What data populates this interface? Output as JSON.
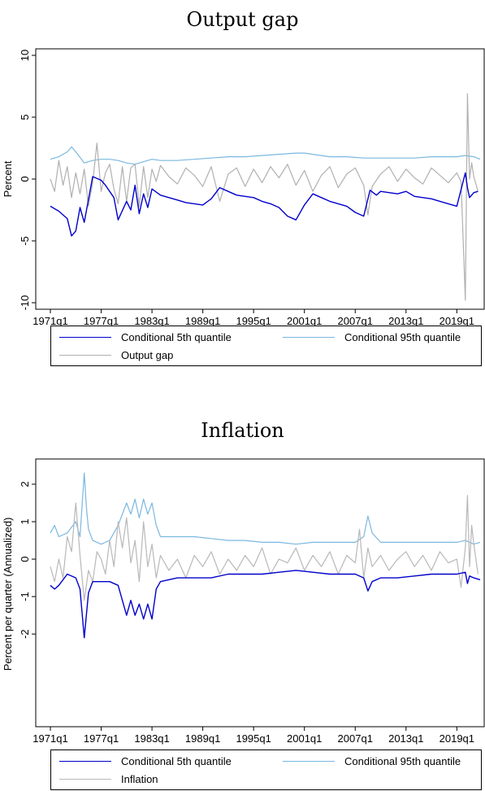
{
  "chart_data": [
    {
      "type": "line",
      "title": "Output gap",
      "ylabel": "Percent",
      "xlabel": "",
      "ylim": [
        -10,
        10
      ],
      "yticks": [
        10,
        5,
        0,
        -5,
        -10
      ],
      "ytick_labels": [
        "10",
        "5",
        "0",
        "-5",
        "-10"
      ],
      "xticks": [
        "1971q1",
        "1977q1",
        "1983q1",
        "1989q1",
        "1995q1",
        "2001q1",
        "2007q1",
        "2013q1",
        "2019q1"
      ],
      "xlim": [
        1971.0,
        2021.75
      ],
      "grid": false,
      "legend_position": "bottom",
      "series": [
        {
          "name": "Conditional 5th quantile",
          "color": "#0000cc",
          "x": [
            1971.0,
            1972.0,
            1973.0,
            1973.5,
            1974.0,
            1974.5,
            1975.0,
            1976.0,
            1977.0,
            1977.5,
            1978.5,
            1979.0,
            1980.0,
            1980.5,
            1981.0,
            1981.5,
            1982.0,
            1982.5,
            1983.0,
            1984.0,
            1985.0,
            1986.0,
            1987.0,
            1988.0,
            1989.0,
            1990.0,
            1991.0,
            1992.0,
            1993.0,
            1994.0,
            1995.0,
            1996.0,
            1997.0,
            1998.0,
            1999.0,
            2000.0,
            2001.0,
            2002.0,
            2003.0,
            2004.0,
            2005.0,
            2006.0,
            2007.0,
            2008.0,
            2008.75,
            2009.5,
            2010.0,
            2011.0,
            2012.0,
            2013.0,
            2014.0,
            2015.0,
            2016.0,
            2017.0,
            2018.0,
            2019.0,
            2020.0,
            2020.25,
            2020.5,
            2021.0,
            2021.5
          ],
          "y": [
            -2.2,
            -2.6,
            -3.2,
            -4.6,
            -4.2,
            -2.3,
            -3.5,
            0.2,
            -0.1,
            -0.5,
            -1.5,
            -3.3,
            -1.8,
            -2.5,
            -0.5,
            -2.8,
            -1.2,
            -2.3,
            -0.8,
            -1.3,
            -1.5,
            -1.7,
            -1.9,
            -2.0,
            -2.1,
            -1.6,
            -0.7,
            -1.0,
            -1.3,
            -1.4,
            -1.5,
            -1.8,
            -2.0,
            -2.3,
            -3.0,
            -3.3,
            -2.1,
            -1.2,
            -1.5,
            -1.8,
            -2.0,
            -2.2,
            -2.7,
            -3.0,
            -0.9,
            -1.3,
            -1.0,
            -1.1,
            -1.2,
            -1.0,
            -1.4,
            -1.5,
            -1.6,
            -1.8,
            -2.0,
            -2.2,
            0.5,
            -0.7,
            -1.5,
            -1.1,
            -1.0
          ]
        },
        {
          "name": "Conditional 95th quantile",
          "color": "#7ab8e0",
          "x": [
            1971.0,
            1972.0,
            1973.0,
            1973.5,
            1974.0,
            1975.0,
            1976.0,
            1977.0,
            1978.0,
            1979.0,
            1980.0,
            1981.0,
            1982.0,
            1983.0,
            1984.0,
            1986.0,
            1988.0,
            1990.0,
            1992.0,
            1994.0,
            1996.0,
            1998.0,
            2000.0,
            2001.0,
            2002.0,
            2004.0,
            2006.0,
            2008.0,
            2010.0,
            2012.0,
            2014.0,
            2016.0,
            2018.0,
            2019.0,
            2020.0,
            2021.0,
            2021.75
          ],
          "y": [
            1.6,
            1.8,
            2.2,
            2.6,
            2.2,
            1.3,
            1.5,
            1.6,
            1.6,
            1.5,
            1.3,
            1.2,
            1.4,
            1.6,
            1.5,
            1.5,
            1.6,
            1.7,
            1.8,
            1.8,
            1.9,
            2.0,
            2.1,
            2.1,
            2.0,
            1.8,
            1.8,
            1.7,
            1.7,
            1.7,
            1.7,
            1.8,
            1.8,
            1.8,
            1.9,
            1.8,
            1.6
          ]
        },
        {
          "name": "Output gap",
          "color": "#b0b0b0",
          "x": [
            1971.0,
            1971.5,
            1972.0,
            1972.5,
            1973.0,
            1973.5,
            1974.0,
            1974.5,
            1975.0,
            1975.5,
            1976.0,
            1976.5,
            1977.0,
            1977.5,
            1978.0,
            1978.5,
            1979.0,
            1979.5,
            1980.0,
            1980.5,
            1981.0,
            1981.5,
            1982.0,
            1982.5,
            1983.0,
            1983.5,
            1984.0,
            1985.0,
            1986.0,
            1987.0,
            1988.0,
            1989.0,
            1990.0,
            1991.0,
            1992.0,
            1993.0,
            1994.0,
            1995.0,
            1996.0,
            1997.0,
            1998.0,
            1999.0,
            2000.0,
            2001.0,
            2002.0,
            2003.0,
            2004.0,
            2005.0,
            2006.0,
            2007.0,
            2008.0,
            2008.5,
            2009.0,
            2010.0,
            2011.0,
            2012.0,
            2013.0,
            2014.0,
            2015.0,
            2016.0,
            2017.0,
            2018.0,
            2019.0,
            2019.5,
            2020.0,
            2020.25,
            2020.5,
            2020.75,
            2021.0,
            2021.5
          ],
          "y": [
            0.0,
            -1.0,
            1.5,
            -0.5,
            1.0,
            -1.5,
            0.5,
            -1.2,
            0.8,
            -2.2,
            -0.3,
            2.9,
            -1.0,
            0.5,
            1.2,
            -0.8,
            -2.0,
            1.0,
            -1.8,
            0.9,
            1.2,
            -2.2,
            1.0,
            -1.5,
            0.8,
            -0.2,
            1.1,
            0.2,
            -0.4,
            0.9,
            0.3,
            -0.6,
            1.0,
            -1.8,
            0.4,
            0.9,
            -0.6,
            0.8,
            -0.3,
            1.0,
            0.1,
            1.2,
            -0.5,
            0.7,
            -1.0,
            0.3,
            1.0,
            -0.7,
            0.4,
            0.9,
            -0.5,
            -2.9,
            -0.6,
            0.4,
            1.0,
            -0.2,
            0.8,
            0.1,
            -0.4,
            0.9,
            0.3,
            -0.3,
            0.5,
            -0.2,
            -9.8,
            6.9,
            0.0,
            1.3,
            0.2,
            -1.0
          ]
        }
      ]
    },
    {
      "type": "line",
      "title": "Inflation",
      "ylabel": "Percent per quarter (Annualized)",
      "xlabel": "",
      "ylim": [
        -4.3,
        2.5
      ],
      "yticks": [
        2,
        1,
        0,
        -1,
        -2
      ],
      "ytick_labels": [
        "2",
        "1",
        "0",
        "-1",
        "-2"
      ],
      "xticks": [
        "1971q1",
        "1977q1",
        "1983q1",
        "1989q1",
        "1995q1",
        "2001q1",
        "2007q1",
        "2013q1",
        "2019q1"
      ],
      "xlim": [
        1971.0,
        2021.75
      ],
      "grid": false,
      "legend_position": "bottom",
      "series": [
        {
          "name": "Conditional 5th quantile",
          "color": "#0000cc",
          "x": [
            1971.0,
            1971.5,
            1972.0,
            1973.0,
            1974.0,
            1974.5,
            1975.0,
            1975.5,
            1976.0,
            1977.0,
            1978.0,
            1979.0,
            1980.0,
            1980.5,
            1981.0,
            1981.5,
            1982.0,
            1982.5,
            1983.0,
            1983.5,
            1984.0,
            1986.0,
            1988.0,
            1990.0,
            1992.0,
            1994.0,
            1996.0,
            1998.0,
            2000.0,
            2002.0,
            2004.0,
            2006.0,
            2007.0,
            2008.0,
            2008.5,
            2009.0,
            2010.0,
            2012.0,
            2014.0,
            2016.0,
            2018.0,
            2019.0,
            2020.0,
            2020.25,
            2020.5,
            2021.0,
            2021.75
          ],
          "y": [
            -0.7,
            -0.8,
            -0.7,
            -0.4,
            -0.5,
            -0.8,
            -2.1,
            -0.9,
            -0.6,
            -0.6,
            -0.6,
            -0.7,
            -1.5,
            -1.1,
            -1.5,
            -1.2,
            -1.6,
            -1.2,
            -1.6,
            -0.8,
            -0.6,
            -0.5,
            -0.5,
            -0.5,
            -0.4,
            -0.4,
            -0.4,
            -0.35,
            -0.3,
            -0.35,
            -0.4,
            -0.4,
            -0.4,
            -0.5,
            -0.85,
            -0.6,
            -0.5,
            -0.5,
            -0.45,
            -0.4,
            -0.4,
            -0.4,
            -0.35,
            -0.65,
            -0.45,
            -0.5,
            -0.55
          ]
        },
        {
          "name": "Conditional 95th quantile",
          "color": "#7ab8e0",
          "x": [
            1971.0,
            1971.5,
            1972.0,
            1973.0,
            1974.0,
            1974.5,
            1975.0,
            1975.25,
            1975.5,
            1976.0,
            1977.0,
            1978.0,
            1979.0,
            1980.0,
            1980.5,
            1981.0,
            1981.5,
            1982.0,
            1982.5,
            1983.0,
            1983.5,
            1984.0,
            1986.0,
            1988.0,
            1990.0,
            1992.0,
            1994.0,
            1996.0,
            1998.0,
            2000.0,
            2002.0,
            2004.0,
            2006.0,
            2007.0,
            2008.0,
            2008.5,
            2009.0,
            2010.0,
            2012.0,
            2014.0,
            2016.0,
            2018.0,
            2019.0,
            2020.0,
            2021.0,
            2021.75
          ],
          "y": [
            0.7,
            0.9,
            0.6,
            0.7,
            1.0,
            0.6,
            2.3,
            1.4,
            0.8,
            0.5,
            0.4,
            0.5,
            0.9,
            1.5,
            1.2,
            1.6,
            1.1,
            1.6,
            1.2,
            1.5,
            0.9,
            0.6,
            0.6,
            0.6,
            0.55,
            0.5,
            0.5,
            0.45,
            0.45,
            0.4,
            0.45,
            0.45,
            0.45,
            0.45,
            0.6,
            1.15,
            0.7,
            0.45,
            0.45,
            0.45,
            0.45,
            0.45,
            0.45,
            0.5,
            0.4,
            0.45
          ]
        },
        {
          "name": "Inflation",
          "color": "#b8b8b8",
          "x": [
            1971.0,
            1971.5,
            1972.0,
            1972.5,
            1973.0,
            1973.5,
            1974.0,
            1974.5,
            1975.0,
            1975.5,
            1976.0,
            1976.5,
            1977.0,
            1977.5,
            1978.0,
            1978.5,
            1979.0,
            1979.5,
            1980.0,
            1980.5,
            1981.0,
            1981.5,
            1982.0,
            1982.5,
            1983.0,
            1983.5,
            1984.0,
            1985.0,
            1986.0,
            1987.0,
            1988.0,
            1989.0,
            1990.0,
            1991.0,
            1992.0,
            1993.0,
            1994.0,
            1995.0,
            1996.0,
            1997.0,
            1998.0,
            1999.0,
            2000.0,
            2001.0,
            2002.0,
            2003.0,
            2004.0,
            2005.0,
            2006.0,
            2007.0,
            2007.5,
            2008.0,
            2008.5,
            2009.0,
            2010.0,
            2011.0,
            2012.0,
            2013.0,
            2014.0,
            2015.0,
            2016.0,
            2017.0,
            2018.0,
            2019.0,
            2019.5,
            2020.0,
            2020.25,
            2020.5,
            2020.75,
            2021.0,
            2021.5
          ],
          "y": [
            -0.2,
            -0.6,
            0.0,
            -0.5,
            0.6,
            0.2,
            1.5,
            0.1,
            -1.1,
            -0.3,
            -0.6,
            0.2,
            0.0,
            -0.4,
            0.5,
            -0.2,
            1.0,
            0.3,
            1.1,
            -0.1,
            0.5,
            -0.6,
            1.0,
            -0.2,
            0.4,
            -0.5,
            0.1,
            -0.3,
            0.0,
            -0.5,
            0.1,
            -0.2,
            0.2,
            -0.4,
            0.0,
            -0.3,
            0.1,
            -0.2,
            0.3,
            -0.4,
            0.0,
            -0.1,
            0.3,
            -0.3,
            0.1,
            -0.2,
            0.2,
            -0.4,
            0.1,
            -0.1,
            0.8,
            -0.5,
            0.3,
            -0.2,
            0.1,
            -0.3,
            0.0,
            0.2,
            -0.2,
            0.1,
            -0.3,
            0.2,
            -0.1,
            0.0,
            -0.75,
            0.3,
            1.7,
            -0.2,
            0.9,
            0.4,
            -0.4
          ]
        }
      ]
    }
  ]
}
